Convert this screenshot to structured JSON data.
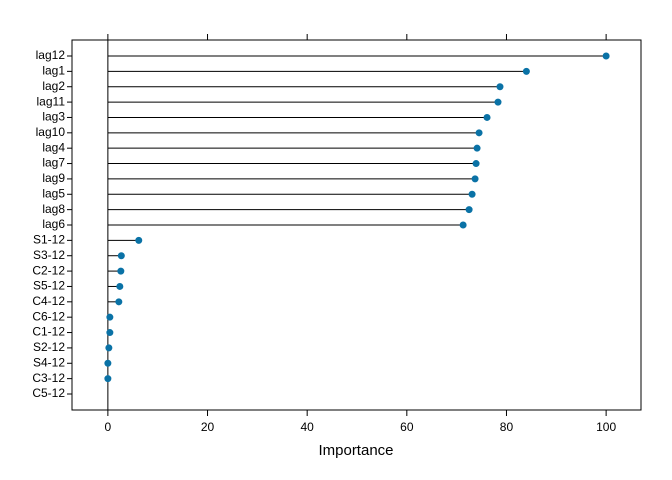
{
  "chart_data": {
    "type": "lollipop",
    "x_label": "Importance",
    "categories": [
      "lag12",
      "lag1",
      "lag2",
      "lag11",
      "lag3",
      "lag10",
      "lag4",
      "lag7",
      "lag9",
      "lag5",
      "lag8",
      "lag6",
      "S1-12",
      "S3-12",
      "C2-12",
      "S5-12",
      "C4-12",
      "C6-12",
      "C1-12",
      "S2-12",
      "S4-12",
      "C3-12",
      "C5-12"
    ],
    "values": [
      100,
      84,
      78.7,
      78.3,
      76.1,
      74.5,
      74.1,
      73.9,
      73.7,
      73.1,
      72.5,
      71.3,
      6.2,
      2.7,
      2.6,
      2.4,
      2.2,
      0.4,
      0.4,
      0.2,
      0,
      0,
      null
    ],
    "color": "#0a72a6",
    "xlim": [
      -7.2,
      107
    ],
    "xticks": [
      0,
      20,
      40,
      60,
      80,
      100
    ]
  }
}
